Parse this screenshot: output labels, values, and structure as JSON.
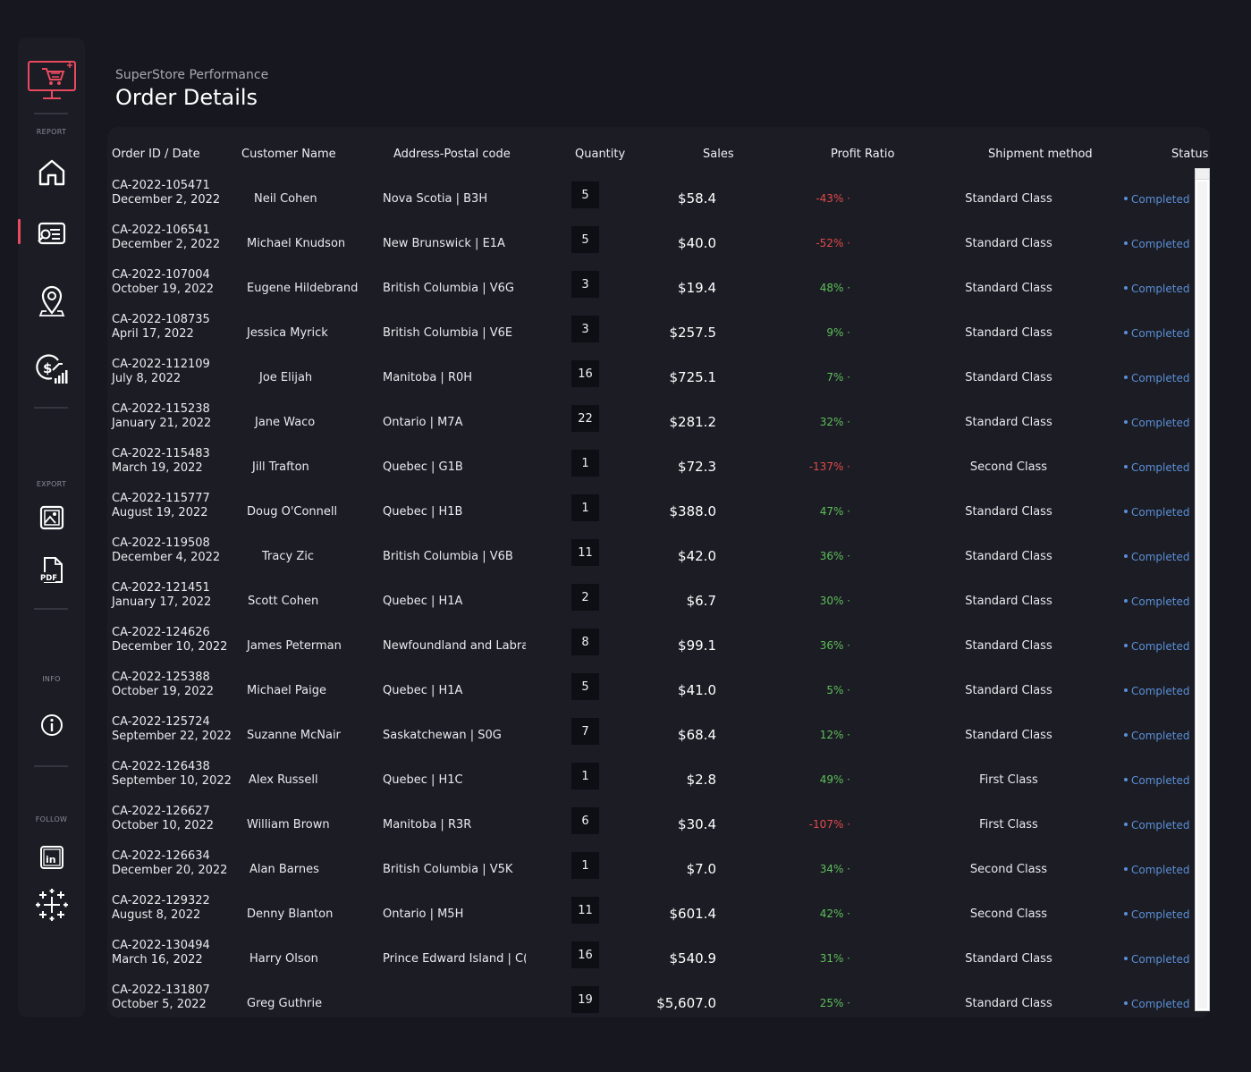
{
  "header": {
    "subtitle": "SuperStore Performance",
    "title": "Order Details"
  },
  "sidebar": {
    "logo_icon": "shopping-cart-monitor-icon",
    "sections": {
      "report": "REPORT",
      "export": "EXPORT",
      "info": "INFO",
      "follow": "FOLLOW"
    },
    "nav": [
      {
        "icon": "home-icon"
      },
      {
        "icon": "order-details-icon",
        "active": true
      },
      {
        "icon": "map-pin-icon"
      },
      {
        "icon": "dollar-chart-icon"
      }
    ],
    "export_items": [
      {
        "icon": "image-icon"
      },
      {
        "icon": "pdf-icon",
        "label": "PDF"
      }
    ],
    "info_icon": "info-icon",
    "follow_items": [
      {
        "icon": "linkedin-icon",
        "label": "in"
      },
      {
        "icon": "tableau-icon"
      }
    ],
    "active_color": "#e84a5f"
  },
  "table": {
    "columns": {
      "order": "Order ID  / Date",
      "customer": "Customer Name",
      "address": "Address-Postal code",
      "quantity": "Quantity",
      "sales": "Sales",
      "profit": "Profit Ratio",
      "shipment": "Shipment method",
      "status": "Status"
    },
    "positive_color": "#5fbf5a",
    "negative_color": "#e34a4a",
    "status_color": "#5b8fd6",
    "rows": [
      {
        "id": "CA-2022-105471",
        "date": "December 2, 2022",
        "name": "Neil Cohen",
        "address": "Nova Scotia   |  B3H",
        "qty": "5",
        "sales": "$58.4",
        "profit": "-43%",
        "ship": "Standard Class",
        "status": "Completed"
      },
      {
        "id": "CA-2022-106541",
        "date": "December 2, 2022",
        "name": "Michael Knudson",
        "address": "New Brunswick   |  E1A",
        "qty": "5",
        "sales": "$40.0",
        "profit": "-52%",
        "ship": "Standard Class",
        "status": "Completed"
      },
      {
        "id": "CA-2022-107004",
        "date": "October 19, 2022",
        "name": "Eugene Hildebrand",
        "address": "British Columbia   |  V6G",
        "qty": "3",
        "sales": "$19.4",
        "profit": "48%",
        "ship": "Standard Class",
        "status": "Completed"
      },
      {
        "id": "CA-2022-108735",
        "date": "April 17, 2022",
        "name": "Jessica Myrick",
        "address": "British Columbia   |  V6E",
        "qty": "3",
        "sales": "$257.5",
        "profit": "9%",
        "ship": "Standard Class",
        "status": "Completed"
      },
      {
        "id": "CA-2022-112109",
        "date": "July 8, 2022",
        "name": "Joe Elijah",
        "address": "Manitoba   |  R0H",
        "qty": "16",
        "sales": "$725.1",
        "profit": "7%",
        "ship": "Standard Class",
        "status": "Completed"
      },
      {
        "id": "CA-2022-115238",
        "date": "January 21, 2022",
        "name": "Jane Waco",
        "address": "Ontario   |  M7A",
        "qty": "22",
        "sales": "$281.2",
        "profit": "32%",
        "ship": "Standard Class",
        "status": "Completed"
      },
      {
        "id": "CA-2022-115483",
        "date": "March 19, 2022",
        "name": "Jill Trafton",
        "address": "Quebec   |  G1B",
        "qty": "1",
        "sales": "$72.3",
        "profit": "-137%",
        "ship": "Second Class",
        "status": "Completed"
      },
      {
        "id": "CA-2022-115777",
        "date": "August 19, 2022",
        "name": "Doug O'Connell",
        "address": "Quebec   |  H1B",
        "qty": "1",
        "sales": "$388.0",
        "profit": "47%",
        "ship": "Standard Class",
        "status": "Completed"
      },
      {
        "id": "CA-2022-119508",
        "date": "December 4, 2022",
        "name": "Tracy Zic",
        "address": "British Columbia   |  V6B",
        "qty": "11",
        "sales": "$42.0",
        "profit": "36%",
        "ship": "Standard Class",
        "status": "Completed"
      },
      {
        "id": "CA-2022-121451",
        "date": "January 17, 2022",
        "name": "Scott Cohen",
        "address": "Quebec   |  H1A",
        "qty": "2",
        "sales": "$6.7",
        "profit": "30%",
        "ship": "Standard Class",
        "status": "Completed"
      },
      {
        "id": "CA-2022-124626",
        "date": "December 10, 2022",
        "name": "James Peterman",
        "address": "Newfoundland and Labrad",
        "qty": "8",
        "sales": "$99.1",
        "profit": "36%",
        "ship": "Standard Class",
        "status": "Completed"
      },
      {
        "id": "CA-2022-125388",
        "date": "October 19, 2022",
        "name": "Michael Paige",
        "address": "Quebec   |  H1A",
        "qty": "5",
        "sales": "$41.0",
        "profit": "5%",
        "ship": "Standard Class",
        "status": "Completed"
      },
      {
        "id": "CA-2022-125724",
        "date": "September 22, 2022",
        "name": "Suzanne McNair",
        "address": "Saskatchewan   |  S0G",
        "qty": "7",
        "sales": "$68.4",
        "profit": "12%",
        "ship": "Standard Class",
        "status": "Completed"
      },
      {
        "id": "CA-2022-126438",
        "date": "September 10, 2022",
        "name": "Alex Russell",
        "address": "Quebec   |  H1C",
        "qty": "1",
        "sales": "$2.8",
        "profit": "49%",
        "ship": "First Class",
        "status": "Completed"
      },
      {
        "id": "CA-2022-126627",
        "date": "October 10, 2022",
        "name": "William Brown",
        "address": "Manitoba   |  R3R",
        "qty": "6",
        "sales": "$30.4",
        "profit": "-107%",
        "ship": "First Class",
        "status": "Completed"
      },
      {
        "id": "CA-2022-126634",
        "date": "December 20, 2022",
        "name": "Alan Barnes",
        "address": "British Columbia   |  V5K",
        "qty": "1",
        "sales": "$7.0",
        "profit": "34%",
        "ship": "Second Class",
        "status": "Completed"
      },
      {
        "id": "CA-2022-129322",
        "date": "August 8, 2022",
        "name": "Denny Blanton",
        "address": "Ontario   |  M5H",
        "qty": "11",
        "sales": "$601.4",
        "profit": "42%",
        "ship": "Second Class",
        "status": "Completed"
      },
      {
        "id": "CA-2022-130494",
        "date": "March 16, 2022",
        "name": "Harry Olson",
        "address": "Prince Edward Island   |  C(",
        "qty": "16",
        "sales": "$540.9",
        "profit": "31%",
        "ship": "Standard Class",
        "status": "Completed"
      },
      {
        "id": "CA-2022-131807",
        "date": "October 5, 2022",
        "name": "Greg Guthrie",
        "address": "",
        "qty": "19",
        "sales": "$5,607.0",
        "profit": "25%",
        "ship": "Standard Class",
        "status": "Completed"
      }
    ]
  }
}
